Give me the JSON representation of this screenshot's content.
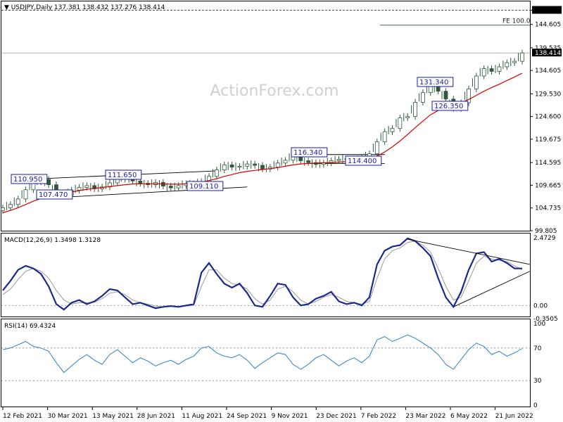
{
  "header": {
    "symbol_line": "USDJPY,Daily  137.381 138.432 137.276 138.414"
  },
  "watermark": "ActionForex.com",
  "colors": {
    "candles": "#2e5a3a",
    "ma": "#d40000",
    "macd": "#1a2a8c",
    "signal": "#999999",
    "rsi": "#2e7fc4",
    "trendlines": "#000000",
    "label_border": "#1a1aa6"
  },
  "chart_data": [
    {
      "type": "candlestick",
      "panel": "price",
      "ylim": [
        99.805,
        149.6
      ],
      "y_ticks": [
        "147.680",
        "144.605",
        "139.535",
        "134.605",
        "129.530",
        "124.600",
        "119.675",
        "114.595",
        "109.665",
        "104.735",
        "99.805"
      ],
      "current_price": "138.414",
      "x_ticks": [
        "12 Feb 2021",
        "30 Mar 2021",
        "13 May 2021",
        "28 Jun 2021",
        "11 Aug 2021",
        "24 Sep 2021",
        "9 Nov 2021",
        "23 Dec 2021",
        "7 Feb 2022",
        "23 Mar 2022",
        "6 May 2022",
        "21 Jun 2022"
      ],
      "series_close": [
        104.8,
        105.5,
        106.7,
        108.7,
        110.4,
        110.95,
        109.8,
        107.9,
        107.47,
        108.6,
        109.2,
        109.6,
        108.9,
        109.3,
        110.2,
        111.0,
        111.65,
        110.6,
        110.1,
        109.8,
        110.3,
        109.5,
        109.11,
        109.6,
        110.0,
        109.9,
        110.5,
        111.6,
        113.0,
        114.1,
        113.6,
        113.8,
        114.3,
        114.0,
        113.2,
        113.6,
        114.5,
        115.1,
        116.34,
        115.0,
        114.6,
        114.2,
        114.5,
        115.0,
        115.3,
        115.4,
        114.9,
        115.6,
        116.5,
        119.1,
        121.3,
        122.0,
        124.3,
        124.6,
        127.7,
        129.8,
        131.34,
        130.1,
        128.4,
        126.35,
        127.6,
        130.6,
        133.4,
        135.0,
        134.4,
        135.4,
        136.3,
        136.6,
        138.414
      ],
      "ma_values": [
        103.7,
        104.2,
        104.8,
        105.5,
        106.2,
        106.8,
        107.3,
        107.6,
        107.9,
        108.2,
        108.5,
        108.8,
        109.0,
        109.2,
        109.4,
        109.6,
        109.8,
        109.95,
        110.0,
        110.0,
        110.0,
        109.95,
        109.9,
        109.9,
        110.0,
        110.1,
        110.35,
        110.7,
        111.1,
        111.6,
        112.0,
        112.4,
        112.7,
        112.9,
        113.1,
        113.3,
        113.5,
        113.8,
        114.1,
        114.3,
        114.4,
        114.5,
        114.55,
        114.6,
        114.7,
        114.8,
        114.9,
        115.05,
        115.4,
        116.0,
        116.9,
        118.0,
        119.3,
        120.7,
        122.2,
        123.6,
        125.0,
        125.9,
        126.6,
        127.1,
        127.6,
        128.3,
        129.2,
        130.1,
        130.9,
        131.6,
        132.4,
        133.2,
        134.0
      ],
      "annotations": [
        "110.950",
        "111.650",
        "107.470",
        "109.110",
        "116.340",
        "114.400",
        "131.340",
        "126.350",
        "FE 100.0"
      ]
    },
    {
      "type": "line",
      "panel": "macd",
      "title": "MACD(12,26,9) 1.3498 1.3128",
      "ylim": [
        -0.3505,
        2.4729
      ],
      "y_ticks": [
        "2.4729",
        "0.00",
        "-0.3505"
      ],
      "series": [
        {
          "name": "MACD",
          "values": [
            0.55,
            0.9,
            1.3,
            1.45,
            1.35,
            1.15,
            0.7,
            0.05,
            -0.15,
            0.1,
            0.2,
            0.05,
            0.15,
            0.35,
            0.6,
            0.55,
            0.3,
            0.05,
            0.1,
            0.0,
            -0.1,
            -0.05,
            -0.02,
            -0.05,
            0.0,
            0.05,
            1.2,
            1.55,
            1.15,
            0.8,
            0.65,
            0.8,
            0.45,
            0.0,
            -0.05,
            0.35,
            0.8,
            0.75,
            0.3,
            0.0,
            0.05,
            0.25,
            0.35,
            0.5,
            0.15,
            0.05,
            0.1,
            0.0,
            0.3,
            1.5,
            2.0,
            2.15,
            2.2,
            2.45,
            2.35,
            2.1,
            1.8,
            1.0,
            0.3,
            -0.05,
            0.5,
            1.3,
            1.9,
            1.95,
            1.6,
            1.7,
            1.55,
            1.35,
            1.35
          ]
        },
        {
          "name": "Signal",
          "values": [
            0.4,
            0.6,
            0.95,
            1.25,
            1.35,
            1.25,
            1.0,
            0.55,
            0.2,
            0.05,
            0.1,
            0.1,
            0.12,
            0.25,
            0.45,
            0.5,
            0.4,
            0.2,
            0.1,
            0.05,
            -0.02,
            -0.05,
            -0.03,
            -0.04,
            -0.02,
            0.0,
            0.7,
            1.3,
            1.3,
            1.0,
            0.8,
            0.75,
            0.6,
            0.25,
            0.05,
            0.2,
            0.6,
            0.7,
            0.5,
            0.2,
            0.05,
            0.15,
            0.3,
            0.4,
            0.3,
            0.15,
            0.1,
            0.05,
            0.15,
            1.0,
            1.7,
            2.0,
            2.1,
            2.3,
            2.35,
            2.2,
            1.95,
            1.35,
            0.7,
            0.2,
            0.3,
            0.9,
            1.55,
            1.8,
            1.7,
            1.65,
            1.6,
            1.45,
            1.31
          ]
        }
      ]
    },
    {
      "type": "line",
      "panel": "rsi",
      "title": "RSI(14) 69.4324",
      "ylim": [
        0,
        100
      ],
      "y_ticks": [
        "100",
        "70",
        "30",
        "0"
      ],
      "guide_levels": [
        70,
        30
      ],
      "series": [
        {
          "name": "RSI",
          "values": [
            68,
            70,
            74,
            78,
            72,
            70,
            66,
            52,
            40,
            48,
            56,
            62,
            55,
            50,
            62,
            68,
            60,
            52,
            58,
            54,
            48,
            52,
            55,
            50,
            56,
            60,
            70,
            72,
            64,
            60,
            58,
            62,
            55,
            45,
            52,
            58,
            64,
            62,
            50,
            44,
            50,
            58,
            62,
            55,
            48,
            54,
            58,
            52,
            60,
            80,
            84,
            78,
            82,
            86,
            82,
            76,
            70,
            62,
            50,
            44,
            56,
            68,
            76,
            72,
            62,
            66,
            60,
            64,
            69.43
          ]
        }
      ]
    }
  ]
}
